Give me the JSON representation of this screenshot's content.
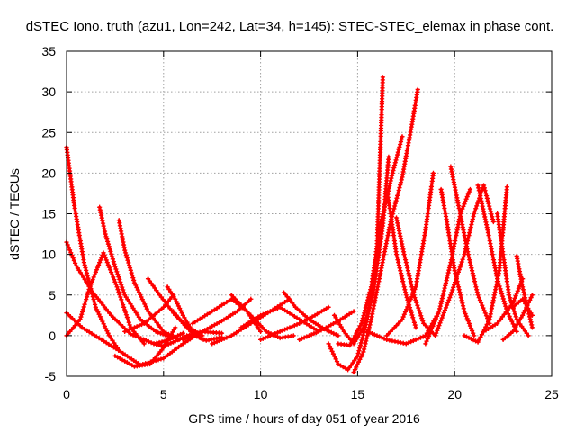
{
  "chart_data": {
    "type": "scatter",
    "title": "dSTEC Iono. truth (azu1, Lon=242, Lat=34, h=145): STEC-STEC_elemax in phase cont.",
    "xlabel": "GPS time / hours of day 051 of year 2016",
    "ylabel": "dSTEC  / TECUs",
    "xlim": [
      0,
      25
    ],
    "ylim": [
      -5,
      35
    ],
    "x_ticks": [
      0,
      5,
      10,
      15,
      20,
      25
    ],
    "y_ticks": [
      -5,
      0,
      5,
      10,
      15,
      20,
      25,
      30,
      35
    ],
    "grid": true,
    "marker": "+",
    "color": "#ff0000",
    "series": [
      {
        "x": [
          0.0,
          0.4,
          0.9,
          1.5,
          2.2,
          2.7
        ],
        "y": [
          23.2,
          16.0,
          9.0,
          3.5,
          0.0,
          -1.8
        ]
      },
      {
        "x": [
          0.0,
          0.5,
          1.3,
          2.3,
          3.3,
          4.5,
          5.2,
          6.0
        ],
        "y": [
          11.5,
          8.6,
          5.5,
          2.5,
          0.2,
          -1.0,
          -0.6,
          0.3
        ]
      },
      {
        "x": [
          0.0,
          0.8,
          1.8,
          2.8,
          3.8,
          5.0,
          6.0,
          7.0
        ],
        "y": [
          2.8,
          1.0,
          -0.5,
          -2.0,
          -3.6,
          -2.8,
          -1.0,
          0.5
        ]
      },
      {
        "x": [
          0.0,
          0.7,
          1.2,
          1.9,
          2.6,
          3.3,
          4.0
        ],
        "y": [
          0.0,
          2.0,
          6.0,
          10.2,
          6.0,
          1.0,
          -1.0
        ]
      },
      {
        "x": [
          1.7,
          2.0,
          2.5,
          3.0,
          3.8,
          4.6,
          5.2
        ],
        "y": [
          15.8,
          12.5,
          8.5,
          5.0,
          2.0,
          0.5,
          0.0
        ]
      },
      {
        "x": [
          2.7,
          3.0,
          3.5,
          4.2,
          5.0,
          5.8
        ],
        "y": [
          14.2,
          10.5,
          6.5,
          3.0,
          0.5,
          -0.5
        ]
      },
      {
        "x": [
          2.5,
          3.5,
          4.3,
          5.0,
          5.6
        ],
        "y": [
          -2.5,
          -3.8,
          -3.5,
          -1.5,
          1.0
        ]
      },
      {
        "x": [
          3.0,
          4.0,
          5.0,
          5.5
        ],
        "y": [
          0.5,
          1.5,
          3.5,
          5.0
        ]
      },
      {
        "x": [
          4.2,
          4.8,
          5.6,
          6.3,
          7.0
        ],
        "y": [
          7.0,
          5.0,
          2.5,
          1.0,
          0.0
        ]
      },
      {
        "x": [
          5.2,
          5.6,
          6.0,
          6.5,
          7.0
        ],
        "y": [
          6.0,
          4.5,
          2.5,
          0.5,
          -0.5
        ]
      },
      {
        "x": [
          4.5,
          5.0,
          5.5,
          6.2,
          7.0,
          8.0
        ],
        "y": [
          -1.0,
          -1.3,
          -0.8,
          0.0,
          0.5,
          0.3
        ]
      },
      {
        "x": [
          5.5,
          6.0,
          6.6,
          7.2,
          8.0
        ],
        "y": [
          3.0,
          1.5,
          0.0,
          -0.6,
          -0.2
        ]
      },
      {
        "x": [
          6.0,
          7.0,
          8.0,
          8.8,
          9.5
        ],
        "y": [
          -0.5,
          0.5,
          1.8,
          3.0,
          4.5
        ]
      },
      {
        "x": [
          6.5,
          7.5,
          8.5,
          9.3,
          10.0
        ],
        "y": [
          1.5,
          3.0,
          4.5,
          3.0,
          0.5
        ]
      },
      {
        "x": [
          7.5,
          8.5,
          9.5,
          10.5,
          11.5
        ],
        "y": [
          -1.0,
          0.0,
          1.5,
          3.0,
          4.5
        ]
      },
      {
        "x": [
          8.5,
          9.5,
          10.3,
          11.0,
          11.7
        ],
        "y": [
          5.0,
          2.5,
          0.5,
          -0.3,
          0.0
        ]
      },
      {
        "x": [
          9.0,
          10.0,
          11.0,
          12.0,
          13.0
        ],
        "y": [
          1.0,
          2.5,
          3.5,
          2.0,
          0.5
        ]
      },
      {
        "x": [
          10.0,
          11.0,
          12.0,
          12.8,
          13.5
        ],
        "y": [
          -0.5,
          0.5,
          1.5,
          2.5,
          3.5
        ]
      },
      {
        "x": [
          11.2,
          11.8,
          12.5,
          13.3,
          14.0
        ],
        "y": [
          5.3,
          3.5,
          2.0,
          0.8,
          0.0
        ]
      },
      {
        "x": [
          12.0,
          13.0,
          14.0,
          14.8
        ],
        "y": [
          -0.5,
          0.5,
          1.8,
          3.0
        ]
      },
      {
        "x": [
          13.5,
          14.0,
          14.5,
          15.0,
          15.5,
          16.0,
          16.3
        ],
        "y": [
          -1.0,
          -3.5,
          -4.2,
          -2.5,
          2.0,
          11.0,
          31.8
        ]
      },
      {
        "x": [
          13.8,
          14.3,
          14.8,
          15.3,
          15.8,
          16.3,
          16.6
        ],
        "y": [
          2.5,
          0.5,
          -1.0,
          1.0,
          5.0,
          13.5,
          22.0
        ]
      },
      {
        "x": [
          14.0,
          14.6,
          15.2,
          15.7,
          16.2,
          16.8,
          17.3
        ],
        "y": [
          -1.0,
          -1.2,
          1.5,
          6.0,
          14.0,
          20.0,
          24.5
        ]
      },
      {
        "x": [
          14.8,
          15.3,
          15.7,
          16.2,
          16.7,
          17.3,
          17.8,
          18.1
        ],
        "y": [
          -4.5,
          -2.0,
          2.0,
          8.0,
          14.0,
          19.5,
          26.0,
          30.3
        ]
      },
      {
        "x": [
          16.5,
          16.7,
          17.0,
          17.5,
          18.0
        ],
        "y": [
          18.0,
          15.0,
          10.0,
          5.0,
          1.0
        ]
      },
      {
        "x": [
          17.0,
          17.4,
          17.9,
          18.4,
          19.0
        ],
        "y": [
          14.5,
          10.0,
          5.0,
          1.5,
          0.0
        ]
      },
      {
        "x": [
          15.5,
          16.5,
          17.5,
          18.5,
          19.2
        ],
        "y": [
          0.5,
          -0.5,
          -1.0,
          0.0,
          3.0
        ]
      },
      {
        "x": [
          16.5,
          17.3,
          18.0,
          18.5,
          18.9
        ],
        "y": [
          0.0,
          2.0,
          6.0,
          13.0,
          20.0
        ]
      },
      {
        "x": [
          19.3,
          19.6,
          20.0,
          20.5,
          21.0
        ],
        "y": [
          18.0,
          14.0,
          8.0,
          3.0,
          0.0
        ]
      },
      {
        "x": [
          19.8,
          20.2,
          20.7,
          21.2,
          21.8
        ],
        "y": [
          20.8,
          16.0,
          10.0,
          5.0,
          1.5
        ]
      },
      {
        "x": [
          18.5,
          19.2,
          19.8,
          20.3,
          20.8
        ],
        "y": [
          -1.0,
          3.0,
          9.0,
          15.0,
          18.0
        ]
      },
      {
        "x": [
          19.0,
          19.8,
          20.5,
          21.0,
          21.5,
          22.0
        ],
        "y": [
          0.0,
          5.0,
          10.0,
          15.0,
          18.5,
          14.0
        ]
      },
      {
        "x": [
          21.2,
          21.7,
          22.2,
          22.7,
          23.2
        ],
        "y": [
          18.5,
          13.0,
          7.0,
          3.0,
          0.5
        ]
      },
      {
        "x": [
          22.2,
          22.5,
          22.8,
          23.2,
          23.8
        ],
        "y": [
          15.0,
          10.0,
          5.0,
          2.0,
          0.0
        ]
      },
      {
        "x": [
          20.5,
          21.2,
          21.8,
          22.3,
          22.7
        ],
        "y": [
          0.0,
          -0.8,
          2.0,
          8.0,
          18.3
        ]
      },
      {
        "x": [
          21.5,
          22.2,
          23.0,
          23.5
        ],
        "y": [
          0.5,
          1.5,
          4.0,
          7.0
        ]
      },
      {
        "x": [
          23.2,
          23.5,
          23.8,
          24.0
        ],
        "y": [
          9.8,
          6.0,
          3.0,
          1.0
        ]
      },
      {
        "x": [
          22.5,
          23.0,
          23.5,
          24.0
        ],
        "y": [
          -0.5,
          0.5,
          2.5,
          5.0
        ]
      },
      {
        "x": [
          23.0,
          23.5,
          24.0
        ],
        "y": [
          3.5,
          4.5,
          2.5
        ]
      }
    ]
  }
}
